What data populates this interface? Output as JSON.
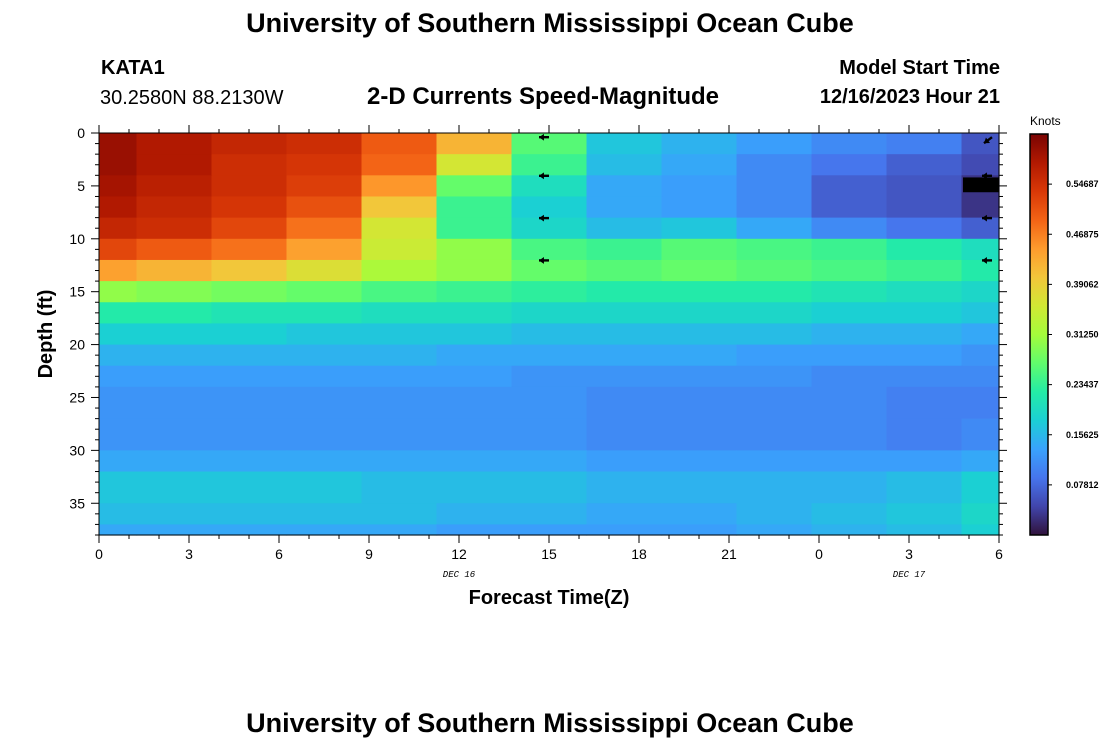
{
  "header": {
    "title": "University of Southern Mississippi Ocean Cube",
    "station": "KATA1",
    "coords": "30.2580N  88.2130W",
    "subtitle": "2-D Currents Speed-Magnitude",
    "model_start_label": "Model Start Time",
    "model_start_value": "12/16/2023 Hour 21"
  },
  "footer": {
    "title": "University of Southern Mississippi Ocean Cube"
  },
  "colors": {
    "colormap": [
      "#30123b",
      "#4145ab",
      "#4675ed",
      "#39a2fc",
      "#1bcfd4",
      "#24eca6",
      "#61fc6c",
      "#a4fc3b",
      "#d1e834",
      "#f3c63a",
      "#fe9b2d",
      "#f36315",
      "#d93807",
      "#b11901",
      "#7a0403"
    ],
    "vector": "#000000"
  },
  "chart_data": {
    "type": "heatmap",
    "title": "2-D Currents Speed-Magnitude",
    "xlabel": "Forecast Time(Z)",
    "ylabel": "Depth (ft)",
    "x_ticks": [
      "0",
      "3",
      "6",
      "9",
      "12",
      "15",
      "18",
      "21",
      "0",
      "3",
      "6"
    ],
    "date_labels": [
      {
        "text": "DEC 16",
        "at_tick": 4
      },
      {
        "text": "DEC 17",
        "at_tick": 9
      }
    ],
    "y_ticks": [
      0,
      5,
      10,
      15,
      20,
      25,
      30,
      35
    ],
    "ylim": [
      0,
      38
    ],
    "x_hours": [
      0,
      2.5,
      5,
      7.5,
      10,
      12.5,
      15,
      17.5,
      20,
      22.5,
      25,
      27.5,
      30
    ],
    "value_range": [
      0.0,
      0.625
    ],
    "colorbar": {
      "unit": "Knots",
      "labels": [
        "0.54687",
        "0.46875",
        "0.39062",
        "0.31250",
        "0.23437",
        "0.15625",
        "0.07812"
      ],
      "values": [
        0.54687,
        0.46875,
        0.39062,
        0.3125,
        0.23437,
        0.15625,
        0.07812
      ]
    },
    "depth_bands": [
      {
        "to": 2,
        "values": [
          0.6,
          0.58,
          0.56,
          0.55,
          0.5,
          0.42,
          0.26,
          0.17,
          0.15,
          0.13,
          0.11,
          0.1,
          0.06
        ]
      },
      {
        "to": 4,
        "values": [
          0.6,
          0.58,
          0.55,
          0.54,
          0.49,
          0.36,
          0.24,
          0.16,
          0.14,
          0.11,
          0.09,
          0.07,
          0.05
        ]
      },
      {
        "to": 6,
        "values": [
          0.59,
          0.57,
          0.55,
          0.53,
          0.45,
          0.27,
          0.2,
          0.14,
          0.13,
          0.11,
          0.07,
          0.06,
          0.03
        ]
      },
      {
        "to": 8,
        "values": [
          0.58,
          0.56,
          0.54,
          0.51,
          0.4,
          0.24,
          0.18,
          0.14,
          0.13,
          0.11,
          0.07,
          0.06,
          0.03
        ]
      },
      {
        "to": 10,
        "values": [
          0.56,
          0.55,
          0.52,
          0.48,
          0.36,
          0.24,
          0.19,
          0.16,
          0.17,
          0.14,
          0.11,
          0.09,
          0.07
        ]
      },
      {
        "to": 12,
        "values": [
          0.52,
          0.5,
          0.48,
          0.44,
          0.35,
          0.3,
          0.25,
          0.24,
          0.26,
          0.25,
          0.24,
          0.22,
          0.2
        ]
      },
      {
        "to": 14,
        "values": [
          0.44,
          0.42,
          0.4,
          0.37,
          0.32,
          0.3,
          0.27,
          0.26,
          0.27,
          0.26,
          0.25,
          0.24,
          0.22
        ]
      },
      {
        "to": 16,
        "values": [
          0.3,
          0.29,
          0.28,
          0.27,
          0.25,
          0.24,
          0.23,
          0.22,
          0.22,
          0.22,
          0.21,
          0.2,
          0.19
        ]
      },
      {
        "to": 18,
        "values": [
          0.22,
          0.22,
          0.21,
          0.21,
          0.2,
          0.2,
          0.19,
          0.19,
          0.19,
          0.19,
          0.18,
          0.18,
          0.17
        ]
      },
      {
        "to": 20,
        "values": [
          0.18,
          0.18,
          0.18,
          0.17,
          0.17,
          0.17,
          0.16,
          0.16,
          0.16,
          0.16,
          0.15,
          0.15,
          0.14
        ]
      },
      {
        "to": 22,
        "values": [
          0.15,
          0.15,
          0.15,
          0.15,
          0.15,
          0.14,
          0.14,
          0.14,
          0.14,
          0.13,
          0.13,
          0.13,
          0.12
        ]
      },
      {
        "to": 24,
        "values": [
          0.13,
          0.13,
          0.13,
          0.13,
          0.13,
          0.13,
          0.12,
          0.12,
          0.12,
          0.12,
          0.11,
          0.11,
          0.11
        ]
      },
      {
        "to": 27,
        "values": [
          0.12,
          0.12,
          0.12,
          0.12,
          0.12,
          0.12,
          0.12,
          0.11,
          0.11,
          0.11,
          0.11,
          0.1,
          0.1
        ]
      },
      {
        "to": 30,
        "values": [
          0.12,
          0.12,
          0.12,
          0.12,
          0.12,
          0.12,
          0.12,
          0.11,
          0.11,
          0.11,
          0.11,
          0.1,
          0.11
        ]
      },
      {
        "to": 32,
        "values": [
          0.14,
          0.14,
          0.14,
          0.14,
          0.14,
          0.14,
          0.14,
          0.13,
          0.13,
          0.13,
          0.13,
          0.13,
          0.14
        ]
      },
      {
        "to": 35,
        "values": [
          0.17,
          0.17,
          0.17,
          0.17,
          0.16,
          0.16,
          0.16,
          0.15,
          0.15,
          0.15,
          0.15,
          0.16,
          0.18
        ]
      },
      {
        "to": 37,
        "values": [
          0.16,
          0.16,
          0.16,
          0.16,
          0.16,
          0.15,
          0.15,
          0.14,
          0.14,
          0.15,
          0.16,
          0.17,
          0.19
        ]
      },
      {
        "to": 38,
        "values": [
          0.14,
          0.14,
          0.14,
          0.14,
          0.14,
          0.13,
          0.13,
          0.13,
          0.13,
          0.14,
          0.15,
          0.16,
          0.18
        ]
      }
    ],
    "vectors": [
      {
        "hour": 15,
        "depth": 0.4,
        "direction": "west"
      },
      {
        "hour": 15,
        "depth": 4,
        "direction": "west"
      },
      {
        "hour": 15,
        "depth": 8,
        "direction": "west"
      },
      {
        "hour": 15,
        "depth": 12,
        "direction": "west"
      },
      {
        "hour": 30,
        "depth": 0.4,
        "direction": "southwest"
      },
      {
        "hour": 30,
        "depth": 4,
        "direction": "west"
      },
      {
        "hour": 30,
        "depth": 8,
        "direction": "west"
      },
      {
        "hour": 30,
        "depth": 12,
        "direction": "west"
      }
    ]
  }
}
